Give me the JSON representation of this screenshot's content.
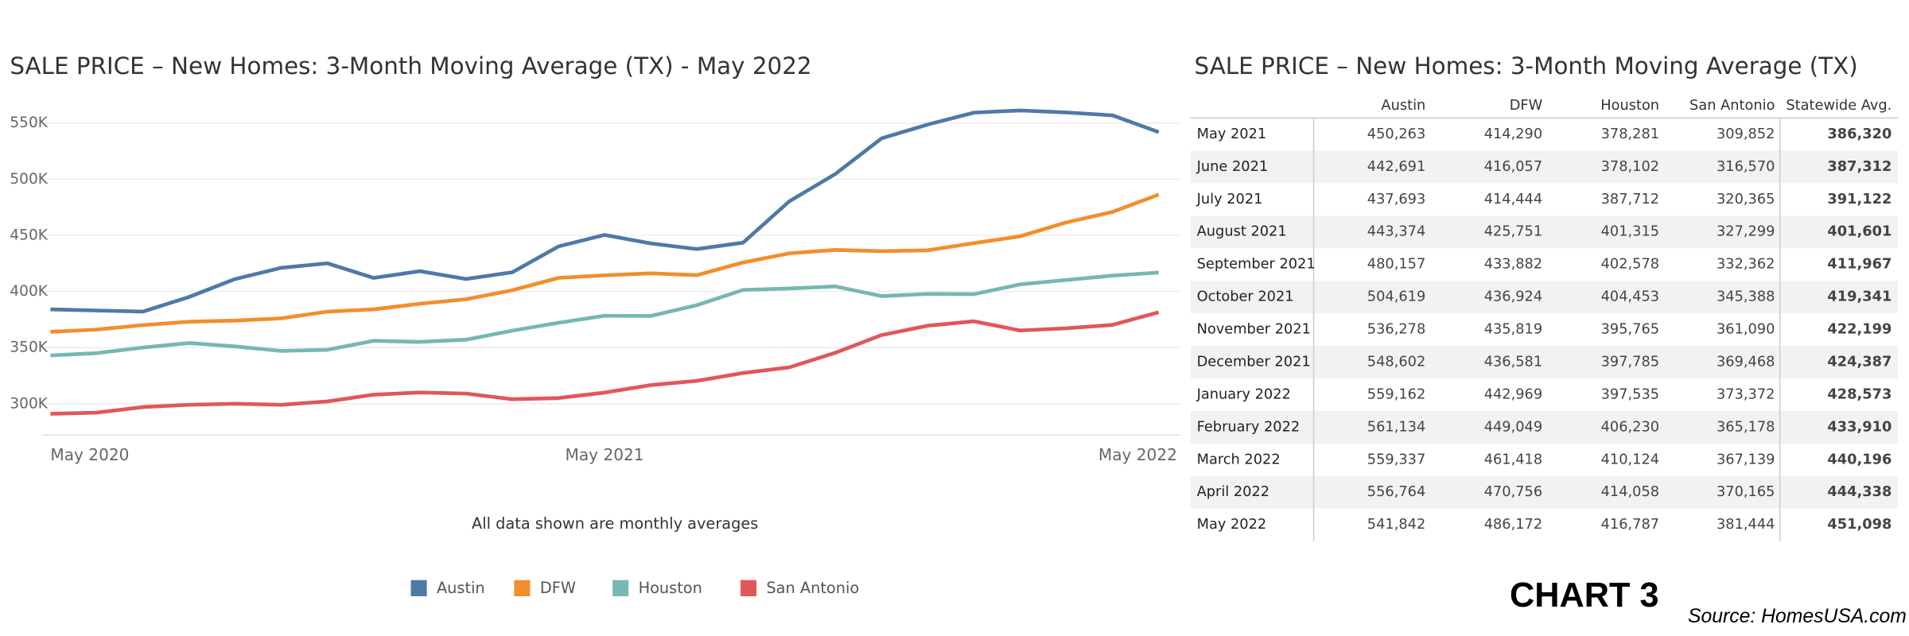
{
  "chart_data": {
    "type": "line",
    "title": "SALE PRICE – New Homes: 3-Month Moving Average (TX) - May 2022",
    "annotation": "All data shown are monthly averages",
    "categories": [
      "May 2020",
      null,
      null,
      null,
      null,
      null,
      null,
      null,
      null,
      null,
      null,
      null,
      "May 2021",
      null,
      null,
      null,
      null,
      null,
      null,
      null,
      null,
      null,
      null,
      null,
      "May 2022"
    ],
    "series": [
      {
        "name": "Austin",
        "color": "#4e79a7",
        "values": [
          384000,
          383000,
          382000,
          395000,
          411000,
          421000,
          425000,
          412000,
          418000,
          411000,
          417000,
          440000,
          450263,
          442691,
          437693,
          443374,
          480157,
          504619,
          536278,
          548602,
          559162,
          561134,
          559337,
          556764,
          541842
        ]
      },
      {
        "name": "DFW",
        "color": "#f28e2b",
        "values": [
          364000,
          366000,
          370000,
          373000,
          374000,
          376000,
          382000,
          384000,
          389000,
          393000,
          401000,
          412000,
          414290,
          416057,
          414444,
          425751,
          433882,
          436924,
          435819,
          436581,
          442969,
          449049,
          461418,
          470756,
          486172
        ]
      },
      {
        "name": "Houston",
        "color": "#76b7b2",
        "values": [
          343000,
          345000,
          350000,
          354000,
          351000,
          347000,
          348000,
          356000,
          355000,
          357000,
          365000,
          372000,
          378281,
          378102,
          387712,
          401315,
          402578,
          404453,
          395765,
          397785,
          397535,
          406230,
          410124,
          414058,
          416787
        ]
      },
      {
        "name": "San Antonio",
        "color": "#e15759",
        "values": [
          291000,
          292000,
          297000,
          299000,
          300000,
          299000,
          302000,
          308000,
          310000,
          309000,
          304000,
          305000,
          309852,
          316570,
          320365,
          327299,
          332362,
          345388,
          361090,
          369468,
          373372,
          365178,
          367139,
          370165,
          381444
        ]
      }
    ],
    "ylim": [
      272000,
      566000
    ],
    "yticks": [
      {
        "value": 300000,
        "label": "300K"
      },
      {
        "value": 350000,
        "label": "350K"
      },
      {
        "value": 400000,
        "label": "400K"
      },
      {
        "value": 450000,
        "label": "450K"
      },
      {
        "value": 500000,
        "label": "500K"
      },
      {
        "value": 550000,
        "label": "550K"
      }
    ],
    "grid": true,
    "legend": "bottom"
  },
  "table": {
    "title": "SALE PRICE – New Homes: 3-Month Moving Average (TX)",
    "columns": [
      "Austin",
      "DFW",
      "Houston",
      "San Antonio",
      "Statewide Avg."
    ],
    "rows": [
      [
        "May 2021",
        "450,263",
        "414,290",
        "378,281",
        "309,852",
        "386,320"
      ],
      [
        "June 2021",
        "442,691",
        "416,057",
        "378,102",
        "316,570",
        "387,312"
      ],
      [
        "July 2021",
        "437,693",
        "414,444",
        "387,712",
        "320,365",
        "391,122"
      ],
      [
        "August 2021",
        "443,374",
        "425,751",
        "401,315",
        "327,299",
        "401,601"
      ],
      [
        "September 2021",
        "480,157",
        "433,882",
        "402,578",
        "332,362",
        "411,967"
      ],
      [
        "October 2021",
        "504,619",
        "436,924",
        "404,453",
        "345,388",
        "419,341"
      ],
      [
        "November 2021",
        "536,278",
        "435,819",
        "395,765",
        "361,090",
        "422,199"
      ],
      [
        "December 2021",
        "548,602",
        "436,581",
        "397,785",
        "369,468",
        "424,387"
      ],
      [
        "January 2022",
        "559,162",
        "442,969",
        "397,535",
        "373,372",
        "428,573"
      ],
      [
        "February 2022",
        "561,134",
        "449,049",
        "406,230",
        "365,178",
        "433,910"
      ],
      [
        "March 2022",
        "559,337",
        "461,418",
        "410,124",
        "367,139",
        "440,196"
      ],
      [
        "April 2022",
        "556,764",
        "470,756",
        "414,058",
        "370,165",
        "444,338"
      ],
      [
        "May 2022",
        "541,842",
        "486,172",
        "416,787",
        "381,444",
        "451,098"
      ]
    ]
  },
  "chart_label": "CHART 3",
  "source": "Source: HomesUSA.com"
}
